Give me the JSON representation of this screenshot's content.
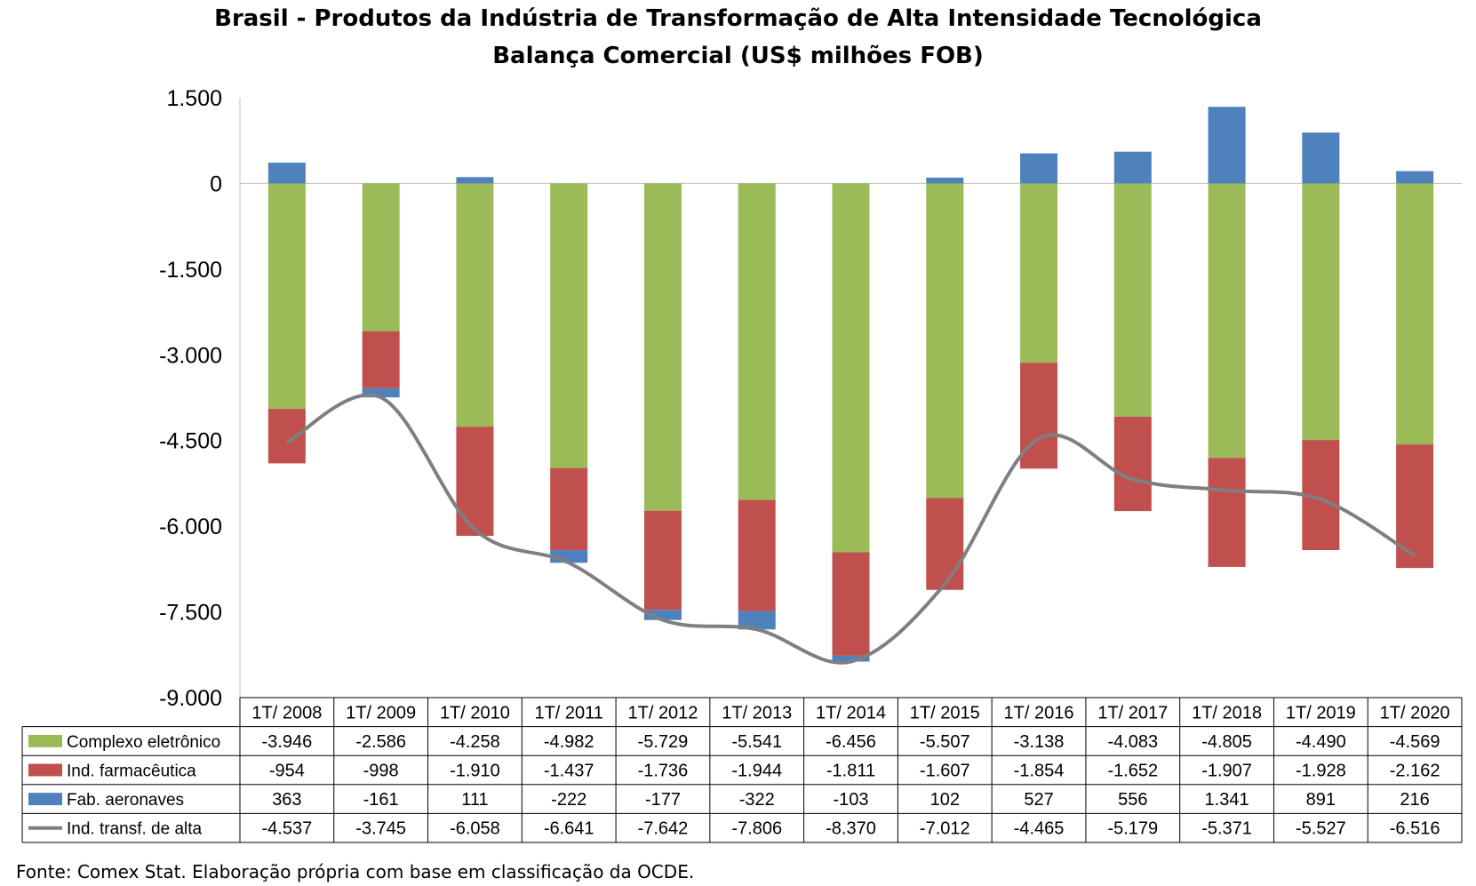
{
  "title": "Brasil - Produtos da Indústria de Transformação de Alta Intensidade Tecnológica",
  "subtitle": "Balança Comercial (US$ milhões FOB)",
  "source": "Fonte: Comex Stat. Elaboração própria com base em classificação da OCDE.",
  "chart_data": {
    "type": "bar",
    "stacked": true,
    "title": "Brasil - Produtos da Indústria de Transformação de Alta Intensidade Tecnológica",
    "subtitle": "Balança Comercial (US$ milhões FOB)",
    "ylim": [
      -9000,
      1500
    ],
    "yticks": [
      1500,
      0,
      -1500,
      -3000,
      -4500,
      -6000,
      -7500,
      -9000
    ],
    "ytick_labels": [
      "1.500",
      "0",
      "-1.500",
      "-3.000",
      "-4.500",
      "-6.000",
      "-7.500",
      "-9.000"
    ],
    "grid": false,
    "legend": "data-table-left",
    "categories": [
      "1T/ 2008",
      "1T/ 2009",
      "1T/ 2010",
      "1T/ 2011",
      "1T/ 2012",
      "1T/ 2013",
      "1T/ 2014",
      "1T/ 2015",
      "1T/ 2016",
      "1T/ 2017",
      "1T/ 2018",
      "1T/ 2019",
      "1T/ 2020"
    ],
    "series": [
      {
        "name": "Complexo eletrônico",
        "type": "bar",
        "color": "#9BBB59",
        "values": [
          -3946,
          -2586,
          -4258,
          -4982,
          -5729,
          -5541,
          -6456,
          -5507,
          -3138,
          -4083,
          -4805,
          -4490,
          -4569
        ],
        "labels": [
          "-3.946",
          "-2.586",
          "-4.258",
          "-4.982",
          "-5.729",
          "-5.541",
          "-6.456",
          "-5.507",
          "-3.138",
          "-4.083",
          "-4.805",
          "-4.490",
          "-4.569"
        ]
      },
      {
        "name": "Ind. farmacêutica",
        "type": "bar",
        "color": "#C0504D",
        "values": [
          -954,
          -998,
          -1910,
          -1437,
          -1736,
          -1944,
          -1811,
          -1607,
          -1854,
          -1652,
          -1907,
          -1928,
          -2162
        ],
        "labels": [
          "-954",
          "-998",
          "-1.910",
          "-1.437",
          "-1.736",
          "-1.944",
          "-1.811",
          "-1.607",
          "-1.854",
          "-1.652",
          "-1.907",
          "-1.928",
          "-2.162"
        ]
      },
      {
        "name": "Fab. aeronaves",
        "type": "bar",
        "color": "#4F81BD",
        "values": [
          363,
          -161,
          111,
          -222,
          -177,
          -322,
          -103,
          102,
          527,
          556,
          1341,
          891,
          216
        ],
        "labels": [
          "363",
          "-161",
          "111",
          "-222",
          "-177",
          "-322",
          "-103",
          "102",
          "527",
          "556",
          "1.341",
          "891",
          "216"
        ]
      },
      {
        "name": "Ind. transf. de alta",
        "type": "line",
        "color": "#7F7F7F",
        "values": [
          -4537,
          -3745,
          -6058,
          -6641,
          -7642,
          -7806,
          -8370,
          -7012,
          -4465,
          -5179,
          -5371,
          -5527,
          -6516
        ],
        "labels": [
          "-4.537",
          "-3.745",
          "-6.058",
          "-6.641",
          "-7.642",
          "-7.806",
          "-8.370",
          "-7.012",
          "-4.465",
          "-5.179",
          "-5.371",
          "-5.527",
          "-6.516"
        ]
      }
    ]
  }
}
